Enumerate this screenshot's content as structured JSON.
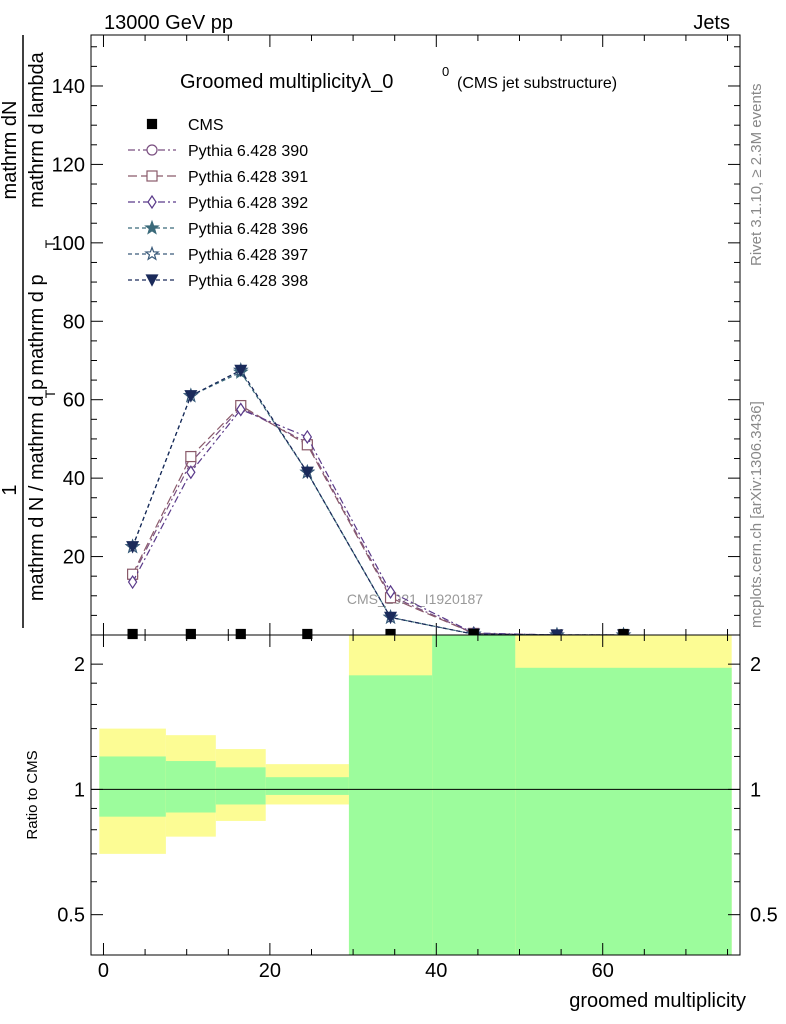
{
  "header": {
    "left_label": "13000 GeV pp",
    "right_label": "Jets"
  },
  "side_labels": {
    "rivet": "Rivet 3.1.10, ≥ 2.3M events",
    "mcplots": "mcplots.cern.ch [arXiv:1306.3436]"
  },
  "watermark": "CMS_2021_I1920187",
  "chart_data": [
    {
      "panel": "main",
      "type": "line",
      "title": "Groomed multiplicityλ_0",
      "title_superscript": "0",
      "subtitle": "(CMS jet substructure)",
      "ylabel_numerator_parts": [
        "1",
        "mathrm dN"
      ],
      "ylabel_denominator": "mathrm d N / mathrm d p",
      "ylabel_denominator_subscript": "T",
      "ylabel_denominator_rest": " mathrm d p",
      "ylabel_denominator_rest_subscript": "T",
      "ylabel_denominator_tail": " mathrm d lambda",
      "ylim": [
        0,
        153
      ],
      "y_ticks": [
        20,
        40,
        60,
        80,
        100,
        120,
        140
      ],
      "x": [
        3.5,
        10.5,
        16.5,
        24.5,
        34.5,
        44.5,
        54.5,
        62.5
      ],
      "series": [
        {
          "name": "CMS",
          "color": "#000000",
          "marker": "filled-square",
          "line": "none",
          "values": [
            0,
            0,
            0,
            0,
            0,
            0,
            null,
            0
          ]
        },
        {
          "name": "Pythia 6.428 390",
          "color": "#7a4f80",
          "marker": "open-circle",
          "dash": "7,3,2,3",
          "values": [
            15,
            44,
            58,
            49,
            10,
            0.4,
            0,
            0
          ]
        },
        {
          "name": "Pythia 6.428 391",
          "color": "#8a5a6a",
          "marker": "open-square",
          "dash": "9,4",
          "values": [
            15.5,
            45.5,
            58.5,
            48.5,
            9.5,
            0.4,
            0,
            0
          ]
        },
        {
          "name": "Pythia 6.428 392",
          "color": "#5a3a8a",
          "marker": "open-diamond",
          "dash": "7,3,2,3",
          "values": [
            13.5,
            41.5,
            57.5,
            50.5,
            11,
            0.5,
            0,
            0
          ]
        },
        {
          "name": "Pythia 6.428 396",
          "color": "#3a6a7a",
          "marker": "filled-star",
          "dash": "4,3",
          "values": [
            22.5,
            61,
            67,
            41.5,
            4.5,
            0.2,
            0,
            0
          ]
        },
        {
          "name": "Pythia 6.428 397",
          "color": "#3a5a7a",
          "marker": "open-star",
          "dash": "4,3",
          "values": [
            22.5,
            61,
            67.5,
            41.5,
            4.5,
            0.2,
            0,
            0
          ]
        },
        {
          "name": "Pythia 6.428 398",
          "color": "#1a2a5a",
          "marker": "filled-triangle-down",
          "dash": "4,3",
          "values": [
            22.5,
            61,
            67.5,
            41.5,
            4.5,
            0.2,
            0,
            0
          ]
        }
      ]
    },
    {
      "panel": "ratio",
      "type": "area",
      "ylabel": "Ratio to CMS",
      "y_scale": "log",
      "ylim": [
        0.4,
        2.35
      ],
      "y_ticks": [
        0.5,
        1,
        2
      ],
      "reference_line": 1,
      "xlabel": "groomed multiplicity",
      "xlim": [
        -1.5,
        76.5
      ],
      "x_ticks": [
        0,
        20,
        40,
        60
      ],
      "bins": [
        {
          "x_low": -0.5,
          "x_high": 7.5,
          "green": [
            0.86,
            1.2
          ],
          "yellow": [
            0.7,
            1.4
          ]
        },
        {
          "x_low": 7.5,
          "x_high": 13.5,
          "green": [
            0.88,
            1.17
          ],
          "yellow": [
            0.77,
            1.35
          ]
        },
        {
          "x_low": 13.5,
          "x_high": 19.5,
          "green": [
            0.92,
            1.13
          ],
          "yellow": [
            0.84,
            1.25
          ]
        },
        {
          "x_low": 19.5,
          "x_high": 29.5,
          "green": [
            0.97,
            1.07
          ],
          "yellow": [
            0.92,
            1.15
          ]
        },
        {
          "x_low": 29.5,
          "x_high": 39.5,
          "green": [
            0.4,
            1.88
          ],
          "yellow": [
            0.4,
            2.35
          ]
        },
        {
          "x_low": 39.5,
          "x_high": 49.5,
          "green": [
            0.4,
            2.35
          ],
          "yellow": [
            0.4,
            2.35
          ]
        },
        {
          "x_low": 49.5,
          "x_high": 75.5,
          "green": [
            0.4,
            1.96
          ],
          "yellow": [
            0.4,
            2.35
          ]
        }
      ],
      "colors": {
        "green": "#9cfc9c",
        "yellow": "#fcfc94"
      }
    }
  ]
}
